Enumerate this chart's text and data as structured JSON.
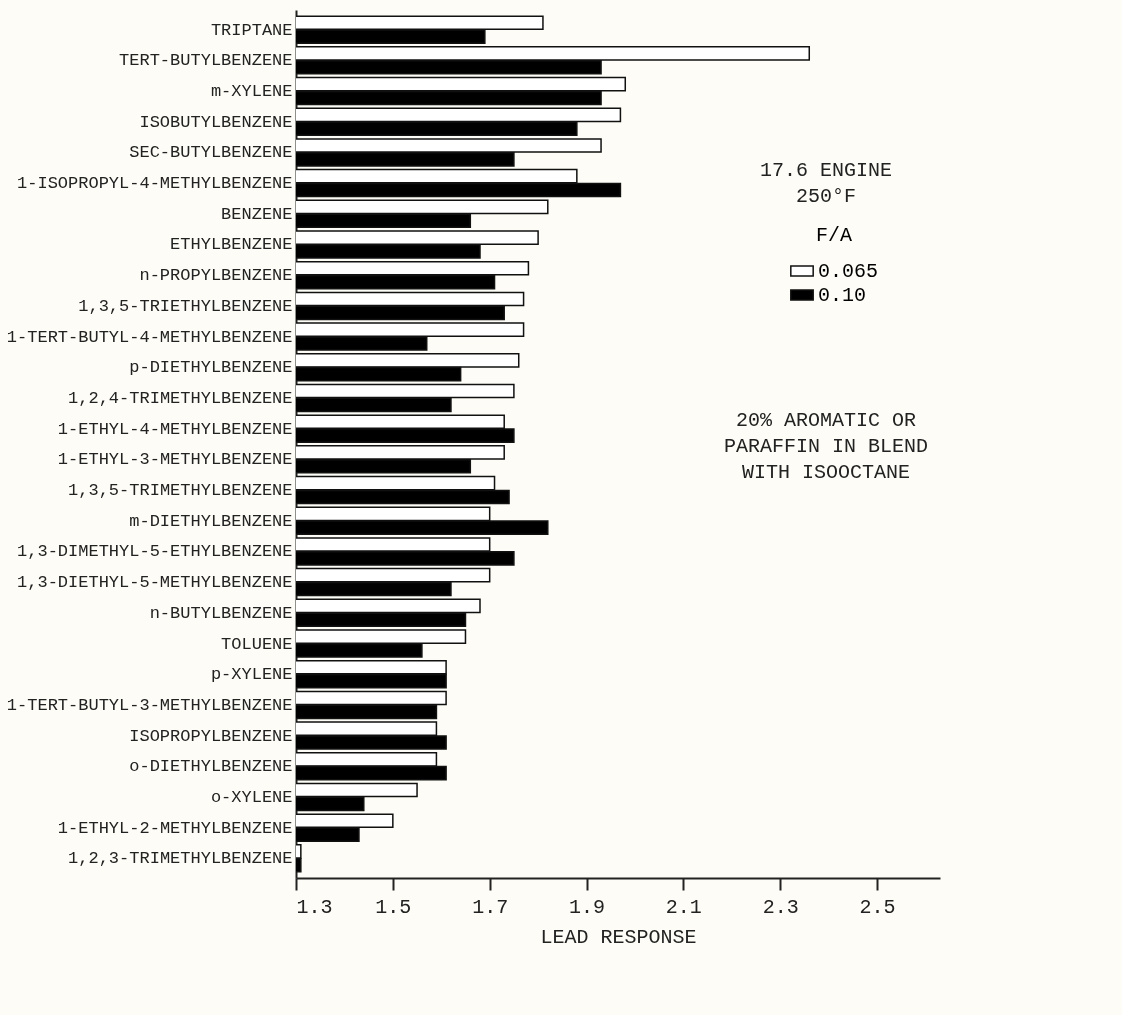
{
  "chart_data": {
    "type": "bar",
    "orientation": "horizontal",
    "xlabel": "LEAD RESPONSE",
    "legend_title": "F/A",
    "legend": "right",
    "categories": [
      "TRIPTANE",
      "TERT-BUTYLBENZENE",
      "m-XYLENE",
      "ISOBUTYLBENZENE",
      "SEC-BUTYLBENZENE",
      "1-ISOPROPYL-4-METHYLBENZENE",
      "BENZENE",
      "ETHYLBENZENE",
      "n-PROPYLBENZENE",
      "1,3,5-TRIETHYLBENZENE",
      "1-TERT-BUTYL-4-METHYLBENZENE",
      "p-DIETHYLBENZENE",
      "1,2,4-TRIMETHYLBENZENE",
      "1-ETHYL-4-METHYLBENZENE",
      "1-ETHYL-3-METHYLBENZENE",
      "1,3,5-TRIMETHYLBENZENE",
      "m-DIETHYLBENZENE",
      "1,3-DIMETHYL-5-ETHYLBENZENE",
      "1,3-DIETHYL-5-METHYLBENZENE",
      "n-BUTYLBENZENE",
      "TOLUENE",
      "p-XYLENE",
      "1-TERT-BUTYL-3-METHYLBENZENE",
      "ISOPROPYLBENZENE",
      "o-DIETHYLBENZENE",
      "o-XYLENE",
      "1-ETHYL-2-METHYLBENZENE",
      "1,2,3-TRIMETHYLBENZENE"
    ],
    "series": [
      {
        "name": "0.065",
        "color": "#ffffff",
        "values": [
          1.81,
          2.36,
          1.98,
          1.97,
          1.93,
          1.88,
          1.82,
          1.8,
          1.78,
          1.77,
          1.77,
          1.76,
          1.75,
          1.73,
          1.73,
          1.71,
          1.7,
          1.7,
          1.7,
          1.68,
          1.65,
          1.61,
          1.61,
          1.59,
          1.59,
          1.55,
          1.5,
          1.31
        ]
      },
      {
        "name": "0.10",
        "color": "#000000",
        "values": [
          1.69,
          1.93,
          1.93,
          1.88,
          1.75,
          1.97,
          1.66,
          1.68,
          1.71,
          1.73,
          1.57,
          1.64,
          1.62,
          1.75,
          1.66,
          1.74,
          1.82,
          1.75,
          1.62,
          1.65,
          1.56,
          1.61,
          1.59,
          1.61,
          1.61,
          1.44,
          1.43,
          1.31
        ]
      }
    ],
    "xlim": [
      1.3,
      2.63
    ],
    "xticks": [
      1.3,
      1.5,
      1.7,
      1.9,
      2.1,
      2.3,
      2.5
    ],
    "annotations": [
      "17.6 ENGINE\n250°F",
      "20% AROMATIC OR\nPARAFFIN IN BLEND\nWITH ISOOCTANE"
    ]
  }
}
